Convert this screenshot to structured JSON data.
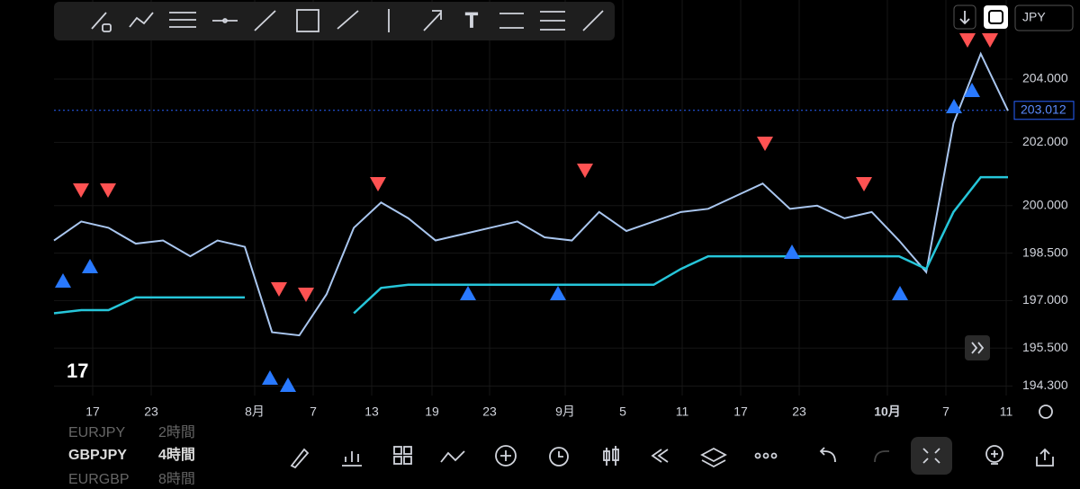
{
  "app": {
    "currency": "JPY",
    "watchlist": [
      {
        "symbol": "EURJPY",
        "interval": "2時間"
      },
      {
        "symbol": "GBPJPY",
        "interval": "4時間"
      },
      {
        "symbol": "EURGBP",
        "interval": "8時間"
      }
    ]
  },
  "chart_data": {
    "type": "line",
    "x_labels": [
      "17",
      "23",
      "8月",
      "7",
      "13",
      "19",
      "23",
      "9月",
      "5",
      "11",
      "17",
      "23",
      "10月",
      "7",
      "11"
    ],
    "ylim": [
      194.0,
      206.5
    ],
    "yticks": [
      {
        "value": 204,
        "label": "204.000"
      },
      {
        "value": 202,
        "label": "202.000"
      },
      {
        "value": 200,
        "label": "200.000"
      },
      {
        "value": 198.5,
        "label": "198.500"
      },
      {
        "value": 197,
        "label": "197.000"
      },
      {
        "value": 195.5,
        "label": "195.500"
      },
      {
        "value": 194.3,
        "label": "194.300"
      }
    ],
    "last_price": {
      "value": 203.012,
      "label": "203.012"
    },
    "series": [
      {
        "color": "#a9c6ef",
        "values": [
          198.9,
          199.5,
          199.3,
          198.8,
          198.9,
          198.4,
          198.9,
          198.7,
          196.0,
          195.9,
          197.2,
          199.3,
          200.1,
          199.6,
          198.9,
          199.1,
          199.3,
          199.5,
          199.0,
          198.9,
          199.8,
          199.2,
          199.5,
          199.8,
          199.9,
          200.3,
          200.7,
          199.9,
          200.0,
          199.6,
          199.8,
          198.9,
          197.9,
          202.6,
          204.8,
          203.0
        ]
      },
      {
        "color": "#26c6da",
        "values": [
          196.6,
          196.7,
          196.7,
          197.1,
          197.1,
          197.1,
          197.1,
          197.1,
          null,
          null,
          null,
          196.6,
          197.4,
          197.5,
          197.5,
          197.5,
          197.5,
          197.5,
          197.5,
          197.5,
          197.5,
          197.5,
          197.5,
          198.0,
          198.4,
          198.4,
          198.4,
          198.4,
          198.4,
          198.4,
          198.4,
          198.4,
          198.0,
          199.8,
          200.9,
          200.9
        ]
      }
    ]
  }
}
